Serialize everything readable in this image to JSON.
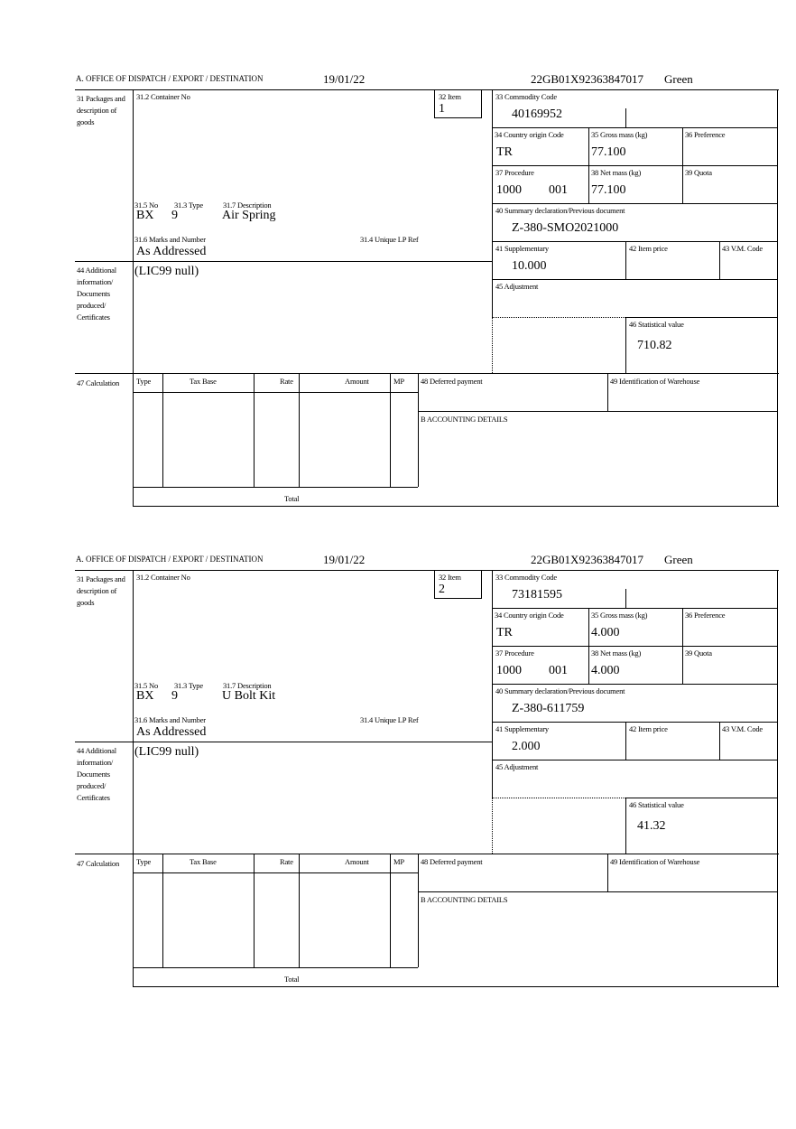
{
  "labels": {
    "office": "A.  OFFICE OF DISPATCH / EXPORT / DESTINATION",
    "box31": "31 Packages and description of goods",
    "box31_2": "31.2 Container No",
    "box32": "32 Item",
    "box33": "33 Commodity Code",
    "box34": "34 Country origin Code",
    "box35": "35 Gross mass (kg)",
    "box36": "36 Preference",
    "box37": "37 Procedure",
    "box38": "38 Net mass (kg)",
    "box39": "39 Quota",
    "box40": "40 Summary declaration/Previous document",
    "box41": "41 Supplementary",
    "box42": "42 Item price",
    "box43": "43 V.M. Code",
    "box45": "45 Adjustment",
    "box46": "46 Statistical value",
    "box31_5": "31.5 No",
    "box31_3": "31.3 Type",
    "box31_7": "31.7 Description",
    "box31_6": "31.6 Marks and Number",
    "box31_4": "31.4 Unique LP Ref",
    "box44": "44 Additional information/ Documents produced/ Certificates",
    "box47": "47 Calculation",
    "calc_type": "Type",
    "calc_taxbase": "Tax Base",
    "calc_rate": "Rate",
    "calc_amount": "Amount",
    "calc_mp": "MP",
    "calc_total": "Total",
    "box48": "48 Deferred payment",
    "box49": "49 Identification of Warehouse",
    "accounting": "B ACCOUNTING DETAILS"
  },
  "forms": [
    {
      "date": "19/01/22",
      "reference": "22GB01X92363847017",
      "route": "Green",
      "item": "1",
      "commodity_code": "40169952",
      "country_origin": "TR",
      "gross_mass": "77.100",
      "procedure": "1000",
      "procedure_additional": "001",
      "net_mass": "77.100",
      "previous_document": "Z-380-SMO2021000",
      "supplementary": "10.000",
      "statistical_value": "710.82",
      "package_no": "BX",
      "package_type": "9",
      "description": "Air Spring",
      "marks": "As Addressed",
      "additional_info": "(LIC99 null)"
    },
    {
      "date": "19/01/22",
      "reference": "22GB01X92363847017",
      "route": "Green",
      "item": "2",
      "commodity_code": "73181595",
      "country_origin": "TR",
      "gross_mass": "4.000",
      "procedure": "1000",
      "procedure_additional": "001",
      "net_mass": "4.000",
      "previous_document": "Z-380-611759",
      "supplementary": "2.000",
      "statistical_value": "41.32",
      "package_no": "BX",
      "package_type": "9",
      "description": "U Bolt Kit",
      "marks": "As Addressed",
      "additional_info": "(LIC99 null)"
    }
  ]
}
